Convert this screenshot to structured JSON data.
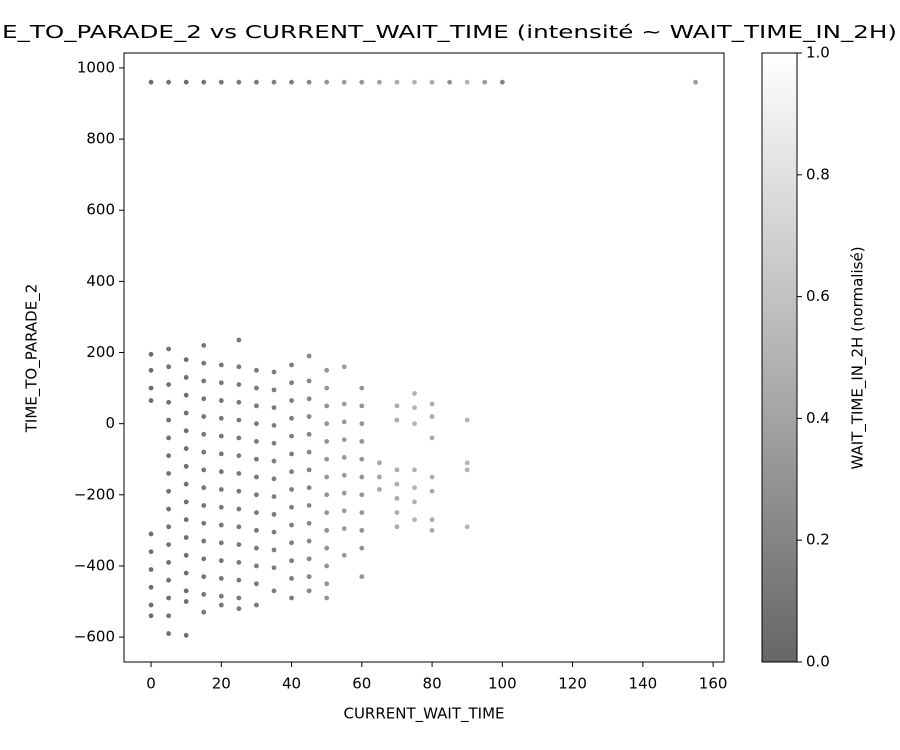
{
  "chart_data": {
    "type": "scatter",
    "title": "E_TO_PARADE_2 vs CURRENT_WAIT_TIME (intensité ~ WAIT_TIME_IN_2H)",
    "x_label": "CURRENT_WAIT_TIME",
    "y_label": "TIME_TO_PARADE_2",
    "colorbar_label": "WAIT_TIME_IN_2H (normalisé)",
    "cmap": "gray",
    "alpha": 0.6,
    "x": [
      0,
      0,
      0,
      0,
      0,
      0,
      0,
      0,
      0,
      0,
      0,
      5,
      5,
      5,
      5,
      5,
      5,
      5,
      5,
      5,
      5,
      5,
      5,
      5,
      5,
      5,
      5,
      5,
      5,
      10,
      10,
      10,
      10,
      10,
      10,
      10,
      10,
      10,
      10,
      10,
      10,
      10,
      10,
      10,
      10,
      10,
      15,
      15,
      15,
      15,
      15,
      15,
      15,
      15,
      15,
      15,
      15,
      15,
      15,
      15,
      15,
      15,
      15,
      20,
      20,
      20,
      20,
      20,
      20,
      20,
      20,
      20,
      20,
      20,
      20,
      20,
      20,
      20,
      20,
      25,
      25,
      25,
      25,
      25,
      25,
      25,
      25,
      25,
      25,
      25,
      25,
      25,
      25,
      25,
      25,
      25,
      30,
      30,
      30,
      30,
      30,
      30,
      30,
      30,
      30,
      30,
      30,
      30,
      30,
      30,
      30,
      35,
      35,
      35,
      35,
      35,
      35,
      35,
      35,
      35,
      35,
      35,
      35,
      35,
      35,
      40,
      40,
      40,
      40,
      40,
      40,
      40,
      40,
      40,
      40,
      40,
      40,
      40,
      40,
      40,
      45,
      45,
      45,
      45,
      45,
      45,
      45,
      45,
      45,
      45,
      45,
      45,
      45,
      45,
      45,
      50,
      50,
      50,
      50,
      50,
      50,
      50,
      50,
      50,
      50,
      50,
      50,
      50,
      50,
      50,
      55,
      55,
      55,
      55,
      55,
      55,
      55,
      55,
      55,
      55,
      55,
      60,
      60,
      60,
      60,
      60,
      60,
      60,
      60,
      60,
      60,
      60,
      60,
      65,
      65,
      65,
      65,
      70,
      70,
      70,
      70,
      70,
      70,
      70,
      70,
      75,
      75,
      75,
      75,
      75,
      75,
      75,
      75,
      80,
      80,
      80,
      80,
      80,
      80,
      80,
      80,
      85,
      90,
      90,
      90,
      90,
      90,
      95,
      100,
      155
    ],
    "y": [
      195,
      150,
      100,
      65,
      -310,
      -360,
      -410,
      -460,
      -510,
      -540,
      960,
      210,
      160,
      110,
      60,
      10,
      -40,
      -90,
      -140,
      -190,
      -240,
      -290,
      -340,
      -390,
      -440,
      -490,
      -540,
      -590,
      960,
      180,
      130,
      80,
      30,
      -20,
      -70,
      -120,
      -170,
      -220,
      -270,
      -320,
      -370,
      -420,
      -470,
      -500,
      -595,
      960,
      220,
      170,
      120,
      70,
      20,
      -30,
      -80,
      -130,
      -180,
      -230,
      -280,
      -330,
      -380,
      -430,
      -480,
      -530,
      960,
      165,
      115,
      65,
      15,
      -35,
      -85,
      -135,
      -185,
      -235,
      -285,
      -335,
      -385,
      -435,
      -485,
      -510,
      960,
      235,
      160,
      110,
      60,
      10,
      -40,
      -90,
      -140,
      -190,
      -240,
      -290,
      -340,
      -390,
      -440,
      -490,
      -520,
      960,
      150,
      100,
      50,
      0,
      -50,
      -100,
      -150,
      -200,
      -250,
      -300,
      -350,
      -400,
      -450,
      -510,
      960,
      145,
      95,
      45,
      -5,
      -55,
      -105,
      -155,
      -205,
      -255,
      -305,
      -355,
      -405,
      -470,
      960,
      165,
      115,
      65,
      15,
      -35,
      -85,
      -135,
      -185,
      -235,
      -285,
      -335,
      -385,
      -435,
      -490,
      960,
      190,
      120,
      70,
      20,
      -30,
      -80,
      -130,
      -180,
      -230,
      -280,
      -330,
      -380,
      -430,
      -470,
      960,
      150,
      100,
      50,
      0,
      -50,
      -100,
      -150,
      -200,
      -250,
      -300,
      -350,
      -400,
      -450,
      -490,
      960,
      160,
      55,
      5,
      -45,
      -95,
      -145,
      -195,
      -245,
      -295,
      -370,
      960,
      100,
      50,
      0,
      -50,
      -100,
      -150,
      -200,
      -250,
      -300,
      -350,
      -430,
      960,
      -110,
      -150,
      -185,
      960,
      50,
      10,
      -130,
      -170,
      -210,
      -250,
      -290,
      960,
      85,
      45,
      0,
      -130,
      -180,
      -220,
      -270,
      960,
      55,
      20,
      -40,
      -150,
      -190,
      -270,
      -300,
      960,
      960,
      10,
      -110,
      -130,
      -290,
      960,
      960,
      960,
      960
    ],
    "c": [
      0.05,
      0.05,
      0.05,
      0.05,
      0.05,
      0.05,
      0.05,
      0.05,
      0.05,
      0.05,
      0.05,
      0.08,
      0.08,
      0.08,
      0.08,
      0.08,
      0.08,
      0.08,
      0.08,
      0.08,
      0.08,
      0.08,
      0.08,
      0.08,
      0.08,
      0.08,
      0.08,
      0.08,
      0.08,
      0.05,
      0.05,
      0.05,
      0.05,
      0.05,
      0.05,
      0.05,
      0.05,
      0.05,
      0.05,
      0.05,
      0.05,
      0.05,
      0.05,
      0.05,
      0.05,
      0.05,
      0.1,
      0.1,
      0.1,
      0.1,
      0.1,
      0.1,
      0.1,
      0.1,
      0.1,
      0.1,
      0.1,
      0.1,
      0.1,
      0.1,
      0.1,
      0.1,
      0.1,
      0.1,
      0.1,
      0.1,
      0.1,
      0.1,
      0.1,
      0.1,
      0.1,
      0.1,
      0.1,
      0.1,
      0.1,
      0.1,
      0.1,
      0.1,
      0.1,
      0.12,
      0.12,
      0.12,
      0.12,
      0.12,
      0.12,
      0.12,
      0.12,
      0.12,
      0.12,
      0.12,
      0.12,
      0.12,
      0.12,
      0.12,
      0.12,
      0.12,
      0.12,
      0.12,
      0.12,
      0.12,
      0.12,
      0.12,
      0.12,
      0.12,
      0.12,
      0.12,
      0.12,
      0.12,
      0.12,
      0.12,
      0.12,
      0.15,
      0.15,
      0.15,
      0.15,
      0.15,
      0.15,
      0.15,
      0.15,
      0.15,
      0.15,
      0.15,
      0.15,
      0.15,
      0.15,
      0.15,
      0.15,
      0.15,
      0.15,
      0.15,
      0.15,
      0.15,
      0.15,
      0.15,
      0.15,
      0.15,
      0.15,
      0.15,
      0.15,
      0.15,
      0.2,
      0.2,
      0.2,
      0.2,
      0.2,
      0.2,
      0.2,
      0.2,
      0.2,
      0.2,
      0.2,
      0.2,
      0.2,
      0.2,
      0.2,
      0.3,
      0.3,
      0.3,
      0.3,
      0.3,
      0.3,
      0.3,
      0.3,
      0.3,
      0.3,
      0.3,
      0.3,
      0.3,
      0.3,
      0.3,
      0.35,
      0.35,
      0.35,
      0.35,
      0.35,
      0.35,
      0.35,
      0.35,
      0.35,
      0.35,
      0.35,
      0.3,
      0.3,
      0.3,
      0.3,
      0.3,
      0.3,
      0.3,
      0.3,
      0.3,
      0.3,
      0.3,
      0.3,
      0.4,
      0.4,
      0.4,
      0.4,
      0.45,
      0.45,
      0.45,
      0.45,
      0.45,
      0.45,
      0.45,
      0.45,
      0.5,
      0.5,
      0.5,
      0.5,
      0.5,
      0.5,
      0.5,
      0.5,
      0.45,
      0.45,
      0.45,
      0.45,
      0.45,
      0.45,
      0.45,
      0.45,
      0.3,
      0.5,
      0.5,
      0.5,
      0.5,
      0.5,
      0.35,
      0.2,
      0.35
    ],
    "xlim": [
      -7.7,
      163.1
    ],
    "ylim": [
      -670,
      1042
    ],
    "xticks": [
      0,
      20,
      40,
      60,
      80,
      100,
      120,
      140,
      160
    ],
    "yticks": [
      {
        "value": -600,
        "label": "−600"
      },
      {
        "value": -400,
        "label": "−400"
      },
      {
        "value": -200,
        "label": "−200"
      },
      0,
      200,
      400,
      600,
      800,
      1000
    ],
    "clim": [
      0,
      1
    ],
    "cticks": [
      {
        "value": 0,
        "label": "0.0"
      },
      {
        "value": 0.2,
        "label": "0.2"
      },
      {
        "value": 0.4,
        "label": "0.4"
      },
      {
        "value": 0.6,
        "label": "0.6"
      },
      {
        "value": 0.8,
        "label": "0.8"
      },
      {
        "value": 1,
        "label": "1.0"
      }
    ]
  }
}
